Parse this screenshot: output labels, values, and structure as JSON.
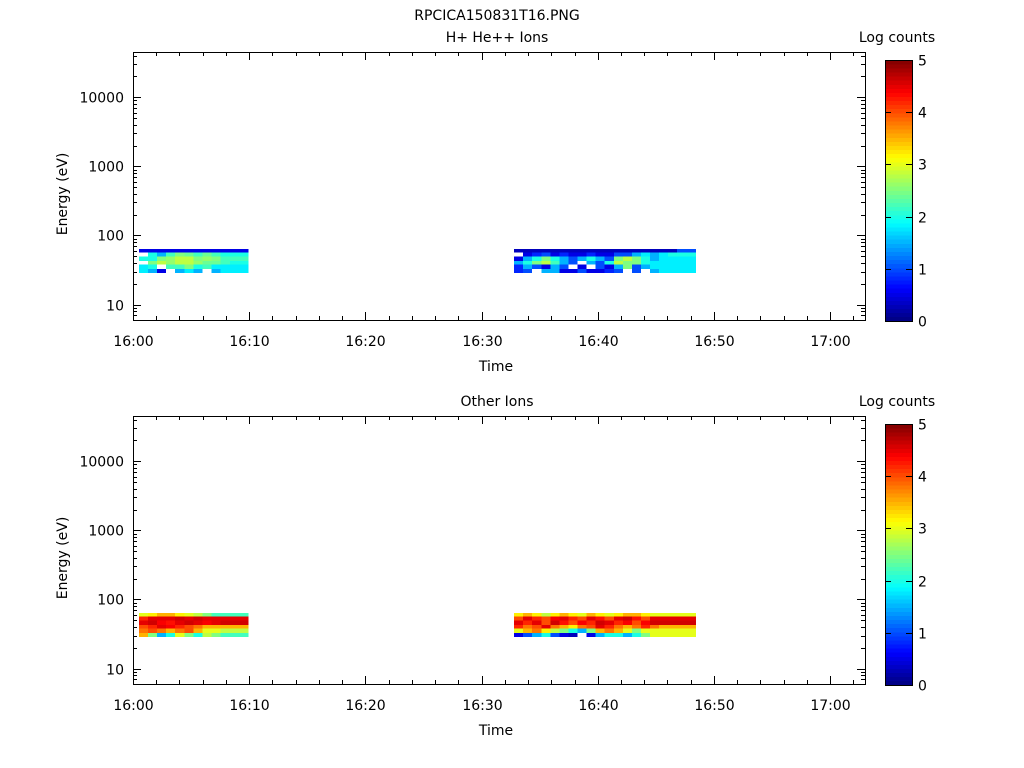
{
  "file_title": "RPCICA150831T16.PNG",
  "chart_data": [
    {
      "type": "heatmap",
      "title": "H+ He++ Ions",
      "xlabel": "Time",
      "ylabel": "Energy (eV)",
      "x_range_min": [
        0,
        63
      ],
      "x_start": "16:00",
      "x_ticks": [
        "16:00",
        "16:10",
        "16:20",
        "16:30",
        "16:40",
        "16:50",
        "17:00"
      ],
      "y_scale": "log",
      "y_range_eV": [
        6,
        45000
      ],
      "y_ticks": [
        "10",
        "100",
        "1000",
        "10000"
      ],
      "y_tick_values": [
        10,
        100,
        1000,
        10000
      ],
      "energy_bins_eV": [
        29,
        33,
        38,
        43,
        50,
        57,
        64
      ],
      "colorbar": {
        "label": "Log counts",
        "ticks": [
          "0",
          "1",
          "2",
          "3",
          "4",
          "5"
        ],
        "range": [
          0,
          5
        ],
        "colormap": "jet"
      },
      "blocks": [
        {
          "start_min": 0.5,
          "end_min": 9.9,
          "rows": [
            [
              0.5,
              0.5,
              0.5,
              0.5,
              0.5,
              0.5,
              0.5,
              0.5,
              0.5,
              0.5,
              0.5,
              0.5
            ],
            [
              -1,
              2.0,
              1.5,
              2.2,
              2.5,
              2.4,
              2.2,
              2.4,
              2.2,
              2.0,
              2.0,
              2.0
            ],
            [
              2.0,
              2.0,
              2.5,
              2.6,
              2.8,
              2.8,
              2.5,
              2.6,
              2.5,
              2.2,
              2.2,
              2.2
            ],
            [
              -1,
              2.5,
              2.8,
              2.6,
              2.8,
              2.8,
              2.6,
              2.4,
              2.4,
              2.2,
              2.0,
              2.0
            ],
            [
              1.8,
              2.0,
              -1,
              2.2,
              2.2,
              2.5,
              2.0,
              2.2,
              1.8,
              1.8,
              1.8,
              1.8
            ],
            [
              1.8,
              1.5,
              0.5,
              -1,
              1.5,
              1.8,
              1.5,
              -1,
              1.5,
              1.8,
              1.8,
              1.8
            ]
          ]
        },
        {
          "start_min": 32.8,
          "end_min": 48.4,
          "rows": [
            [
              0.3,
              0.3,
              0.3,
              0.3,
              0.3,
              0.3,
              0.3,
              0.3,
              0.3,
              0.3,
              0.3,
              0.3,
              0.3,
              0.3,
              0.3,
              0.3,
              0.3,
              0.3,
              1.0,
              1.0
            ],
            [
              -1,
              0.5,
              0.8,
              1.0,
              0.5,
              0.8,
              0.5,
              0.5,
              0.8,
              0.5,
              0.5,
              1.0,
              1.0,
              1.5,
              1.8,
              1.5,
              1.8,
              2.0,
              2.0,
              2.0
            ],
            [
              0.5,
              1.5,
              2.0,
              2.5,
              2.0,
              1.5,
              1.0,
              1.5,
              2.0,
              1.5,
              1.0,
              2.5,
              2.8,
              2.5,
              2.0,
              1.5,
              1.8,
              1.8,
              1.8,
              1.8
            ],
            [
              1.5,
              2.0,
              2.5,
              2.8,
              2.2,
              1.5,
              1.0,
              -1,
              1.5,
              1.0,
              2.0,
              2.8,
              2.5,
              2.5,
              2.0,
              1.8,
              1.8,
              1.8,
              1.8,
              1.8
            ],
            [
              0.8,
              1.5,
              1.0,
              0.5,
              1.5,
              1.0,
              -1,
              0.5,
              -1,
              1.0,
              0.5,
              1.5,
              2.5,
              1.0,
              1.5,
              1.8,
              1.8,
              1.8,
              1.8,
              1.8
            ],
            [
              0.8,
              1.0,
              -1,
              1.5,
              1.5,
              0.5,
              0.5,
              1.0,
              0.5,
              0.5,
              0.8,
              1.0,
              -1,
              1.0,
              -1,
              1.5,
              1.8,
              1.8,
              1.8,
              1.8
            ]
          ]
        }
      ]
    },
    {
      "type": "heatmap",
      "title": "Other Ions",
      "xlabel": "Time",
      "ylabel": "Energy (eV)",
      "x_range_min": [
        0,
        63
      ],
      "x_start": "16:00",
      "x_ticks": [
        "16:00",
        "16:10",
        "16:20",
        "16:30",
        "16:40",
        "16:50",
        "17:00"
      ],
      "y_scale": "log",
      "y_range_eV": [
        6,
        45000
      ],
      "y_ticks": [
        "10",
        "100",
        "1000",
        "10000"
      ],
      "y_tick_values": [
        10,
        100,
        1000,
        10000
      ],
      "energy_bins_eV": [
        29,
        33,
        38,
        43,
        50,
        57,
        64
      ],
      "colorbar": {
        "label": "Log counts",
        "ticks": [
          "0",
          "1",
          "2",
          "3",
          "4",
          "5"
        ],
        "range": [
          0,
          5
        ],
        "colormap": "jet"
      },
      "blocks": [
        {
          "start_min": 0.5,
          "end_min": 9.9,
          "rows": [
            [
              3.0,
              3.2,
              3.5,
              3.5,
              3.2,
              3.0,
              2.8,
              2.5,
              2.2,
              2.2,
              2.2,
              2.2
            ],
            [
              4.2,
              4.5,
              4.5,
              4.5,
              4.6,
              4.5,
              4.6,
              4.5,
              4.5,
              4.5,
              4.5,
              4.5
            ],
            [
              4.5,
              4.6,
              4.4,
              4.3,
              4.5,
              4.6,
              4.5,
              4.4,
              4.5,
              4.6,
              4.6,
              4.6
            ],
            [
              4.0,
              4.2,
              4.5,
              4.4,
              4.2,
              4.0,
              3.8,
              3.5,
              3.5,
              3.5,
              3.5,
              3.5
            ],
            [
              3.8,
              4.0,
              3.8,
              3.5,
              3.8,
              4.0,
              3.5,
              3.0,
              3.0,
              2.8,
              2.8,
              2.8
            ],
            [
              3.5,
              2.5,
              1.5,
              2.0,
              3.0,
              2.5,
              2.0,
              2.8,
              2.5,
              2.2,
              2.2,
              2.2
            ]
          ]
        },
        {
          "start_min": 32.8,
          "end_min": 48.4,
          "rows": [
            [
              3.2,
              3.5,
              3.2,
              2.8,
              3.2,
              3.5,
              3.2,
              3.0,
              3.5,
              3.2,
              3.0,
              3.2,
              3.5,
              3.5,
              3.2,
              3.0,
              3.0,
              3.0,
              3.0,
              3.0
            ],
            [
              4.0,
              4.5,
              4.2,
              4.0,
              4.4,
              4.5,
              4.2,
              4.0,
              4.5,
              4.3,
              4.0,
              4.5,
              4.6,
              4.3,
              4.0,
              4.5,
              4.5,
              4.5,
              4.5,
              4.5
            ],
            [
              4.5,
              4.2,
              4.5,
              4.0,
              4.6,
              4.3,
              4.0,
              4.4,
              4.2,
              4.6,
              4.5,
              4.2,
              4.4,
              4.0,
              4.4,
              4.6,
              4.6,
              4.6,
              4.6,
              4.6
            ],
            [
              4.2,
              3.8,
              4.0,
              4.5,
              3.8,
              3.5,
              3.2,
              3.8,
              4.0,
              4.5,
              4.2,
              3.8,
              3.5,
              3.8,
              4.2,
              3.8,
              3.5,
              3.5,
              3.5,
              3.5
            ],
            [
              3.0,
              3.5,
              3.8,
              3.2,
              2.8,
              2.5,
              2.0,
              1.5,
              2.5,
              3.5,
              3.8,
              3.5,
              3.0,
              2.5,
              3.0,
              3.0,
              3.0,
              3.0,
              3.0,
              3.0
            ],
            [
              0.5,
              1.0,
              1.5,
              2.0,
              1.0,
              0.5,
              0.3,
              -1,
              0.5,
              1.5,
              2.0,
              2.0,
              1.5,
              2.0,
              2.5,
              3.0,
              3.0,
              3.0,
              3.0,
              3.0
            ]
          ]
        }
      ]
    }
  ]
}
